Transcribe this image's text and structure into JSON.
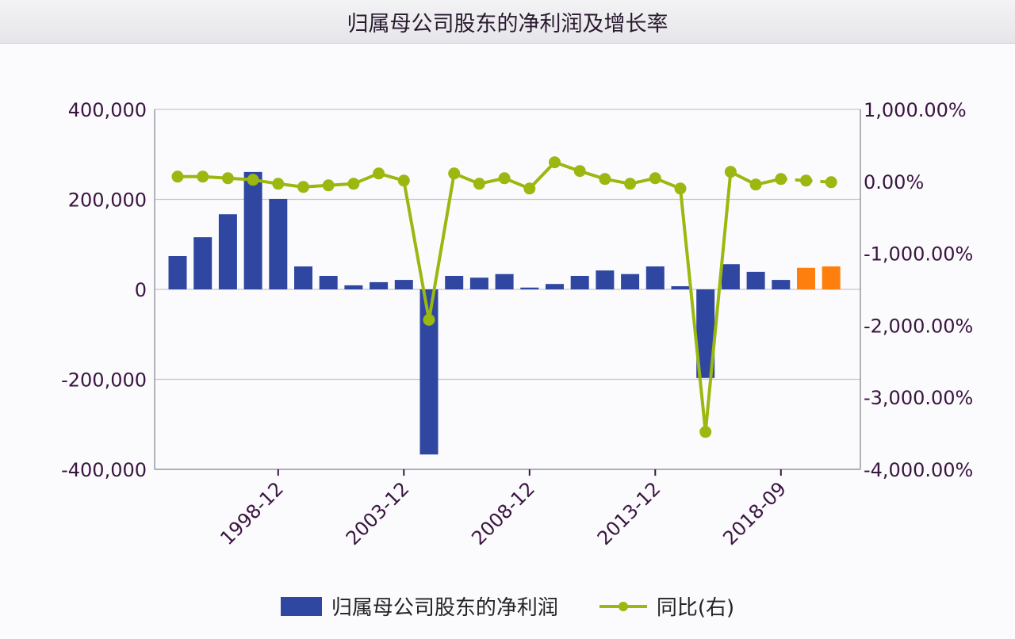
{
  "header": {
    "title": "归属母公司股东的净利润及增长率"
  },
  "colors": {
    "bar": "#2f47a1",
    "bar_highlight": "#ff7f0e",
    "line": "#9ab80f",
    "grid": "#c5c7cc",
    "axis_text": "#3a1540"
  },
  "chart_data": {
    "type": "bar+line",
    "title": "归属母公司股东的净利润及增长率",
    "categories": [
      "",
      "",
      "",
      "",
      "1998-12",
      "",
      "",
      "",
      "",
      "2003-12",
      "",
      "",
      "",
      "",
      "2008-12",
      "",
      "",
      "",
      "",
      "2013-12",
      "",
      "",
      "",
      "",
      "2018-09",
      "",
      ""
    ],
    "left_axis": {
      "ylim": [
        -400000,
        400000
      ],
      "ticks": [
        "400,000",
        "200,000",
        "0",
        "-200,000",
        "-400,000"
      ],
      "tick_values": [
        400000,
        200000,
        0,
        -200000,
        -400000
      ]
    },
    "right_axis": {
      "ylim": [
        -4000,
        1000
      ],
      "ticks": [
        "1,000.00%",
        "0.00%",
        "-1,000.00%",
        "-2,000.00%",
        "-3,000.00%",
        "-4,000.00%"
      ],
      "tick_values": [
        1000,
        0,
        -1000,
        -2000,
        -3000,
        -4000
      ]
    },
    "grid": true,
    "legend_placement": "bottom",
    "series": [
      {
        "name": "归属母公司股东的净利润",
        "type": "bar",
        "axis": "left",
        "values": [
          74000,
          116000,
          167000,
          261000,
          201000,
          51000,
          30000,
          9000,
          16000,
          21000,
          -367000,
          30000,
          26000,
          34000,
          4000,
          12000,
          30000,
          42000,
          34000,
          51000,
          7000,
          -197000,
          56000,
          39000,
          21000,
          48000,
          51000
        ],
        "highlight_indices": [
          25,
          26
        ]
      },
      {
        "name": "同比(右)",
        "type": "line",
        "axis": "right",
        "unit": "%",
        "values": [
          66,
          66,
          44,
          22,
          -33,
          -77,
          -55,
          -33,
          110,
          11,
          -1923,
          110,
          -33,
          44,
          -99,
          265,
          144,
          33,
          -33,
          44,
          -99,
          -3480,
          133,
          -44,
          33,
          11,
          -11
        ],
        "dashed_from_index": 24
      }
    ]
  },
  "legend": {
    "bar_label": "归属母公司股东的净利润",
    "line_label": "同比(右)"
  }
}
